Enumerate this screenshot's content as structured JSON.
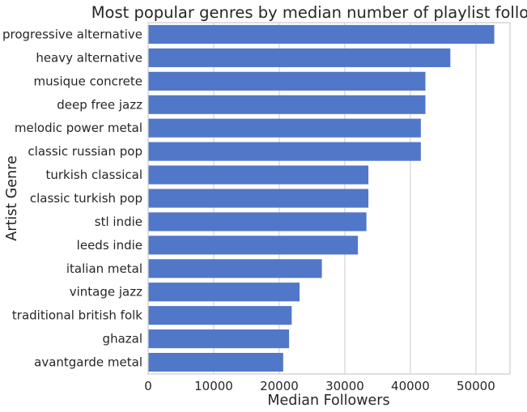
{
  "chart_data": {
    "type": "bar",
    "orientation": "horizontal",
    "title": "Most popular genres by median number of playlist followers",
    "xlabel": "Median Followers",
    "ylabel": "Artist Genre",
    "categories": [
      "progressive alternative",
      "heavy alternative",
      "musique concrete",
      "deep free jazz",
      "melodic power metal",
      "classic russian pop",
      "turkish classical",
      "classic turkish pop",
      "stl indie",
      "leeds indie",
      "italian metal",
      "vintage jazz",
      "traditional british folk",
      "ghazal",
      "avantgarde metal"
    ],
    "values": [
      52800,
      46100,
      42300,
      42300,
      41600,
      41600,
      33600,
      33600,
      33300,
      32000,
      26500,
      23100,
      21900,
      21500,
      20600
    ],
    "xlim": [
      0,
      55200
    ],
    "xticks": [
      0,
      10000,
      20000,
      30000,
      40000,
      50000
    ],
    "xtick_labels": [
      "0",
      "10000",
      "20000",
      "30000",
      "40000",
      "50000"
    ],
    "grid": "vertical",
    "legend": "none",
    "bar_color": "#5177c9"
  }
}
